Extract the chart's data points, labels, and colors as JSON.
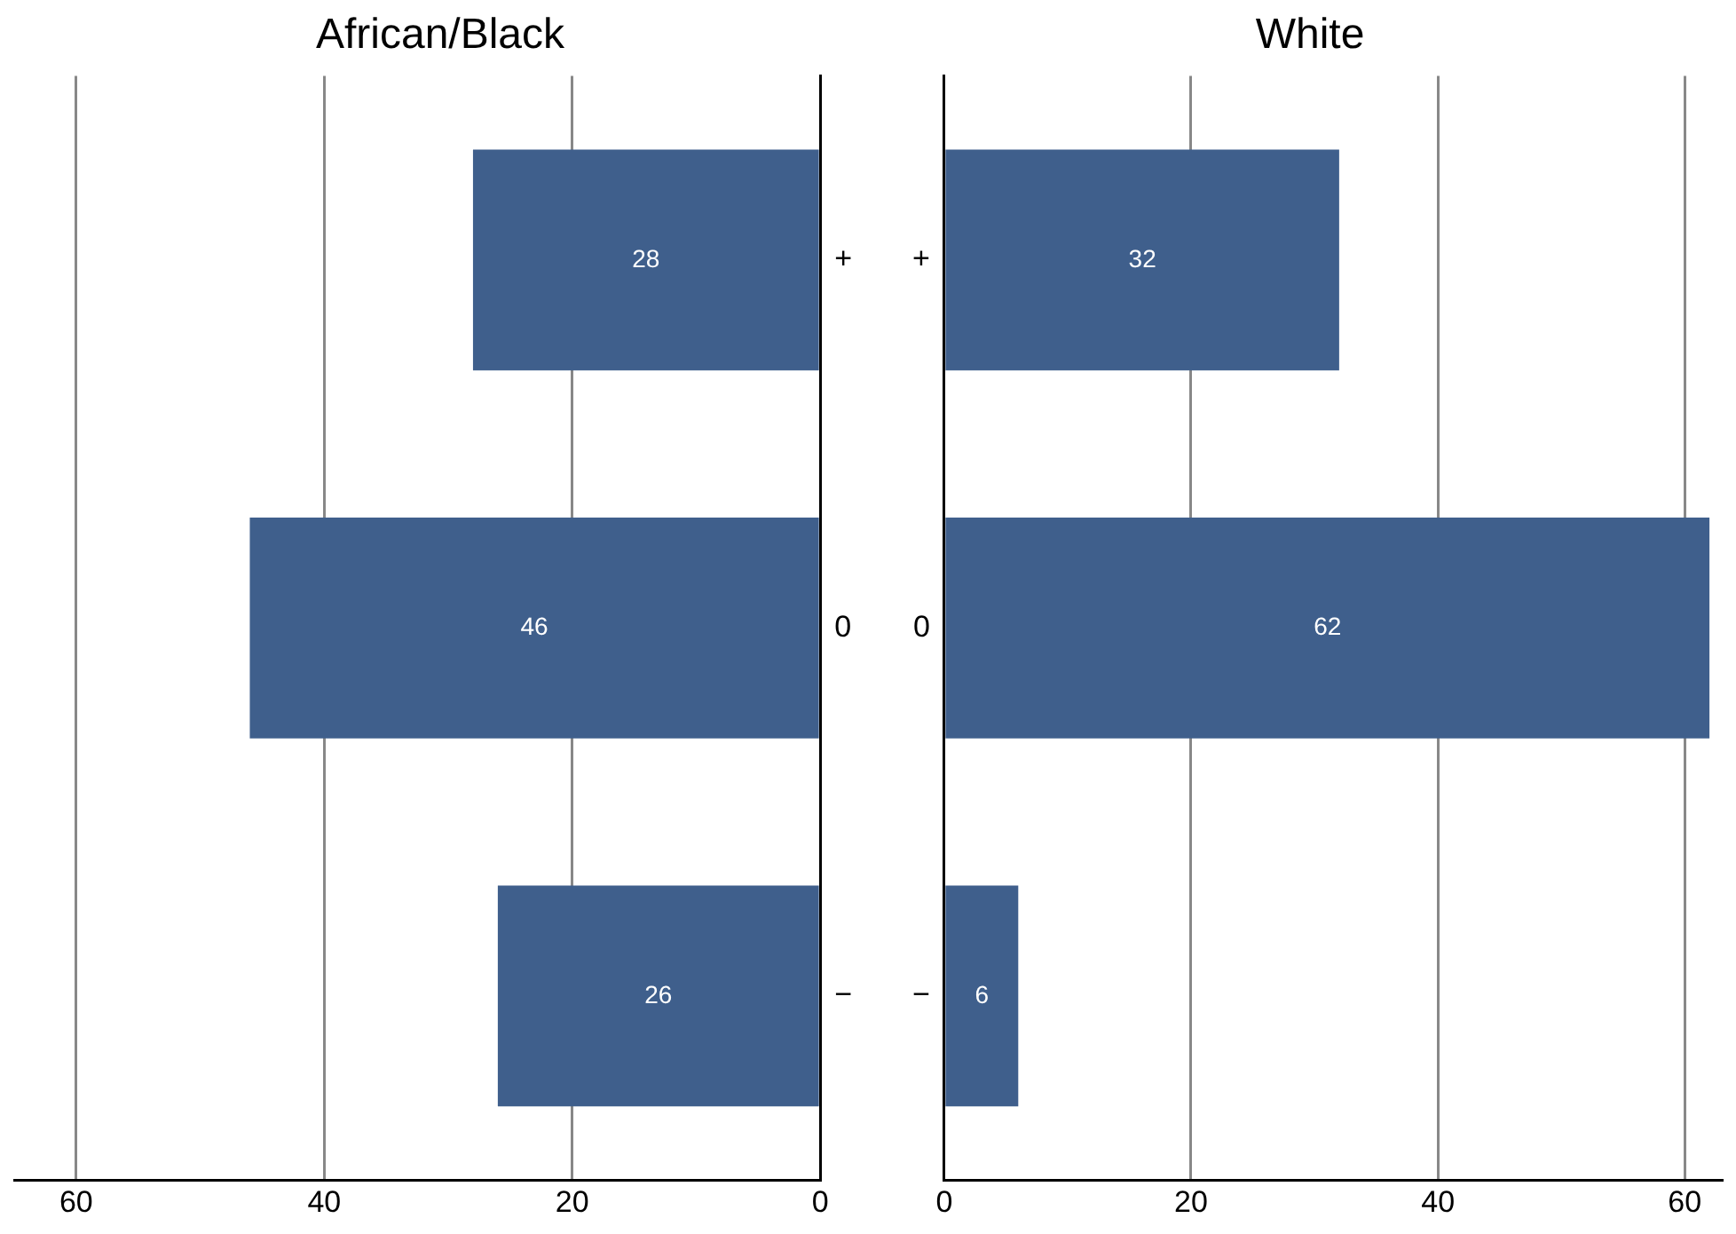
{
  "chart_data": [
    {
      "type": "bar",
      "orientation": "horizontal",
      "title": "African/Black",
      "categories": [
        "+",
        "0",
        "−"
      ],
      "values": [
        28,
        46,
        26
      ],
      "color": "#3f5f8c",
      "xlim": [
        65,
        0
      ],
      "xticks": [
        60,
        40,
        20,
        0
      ],
      "grid": "x",
      "data_labels": true
    },
    {
      "type": "bar",
      "orientation": "horizontal",
      "title": "White",
      "categories": [
        "+",
        "0",
        "−"
      ],
      "values": [
        32,
        62,
        6
      ],
      "color": "#3f5f8c",
      "xlim": [
        0,
        63
      ],
      "xticks": [
        0,
        20,
        40,
        60
      ],
      "grid": "x",
      "data_labels": true
    }
  ]
}
